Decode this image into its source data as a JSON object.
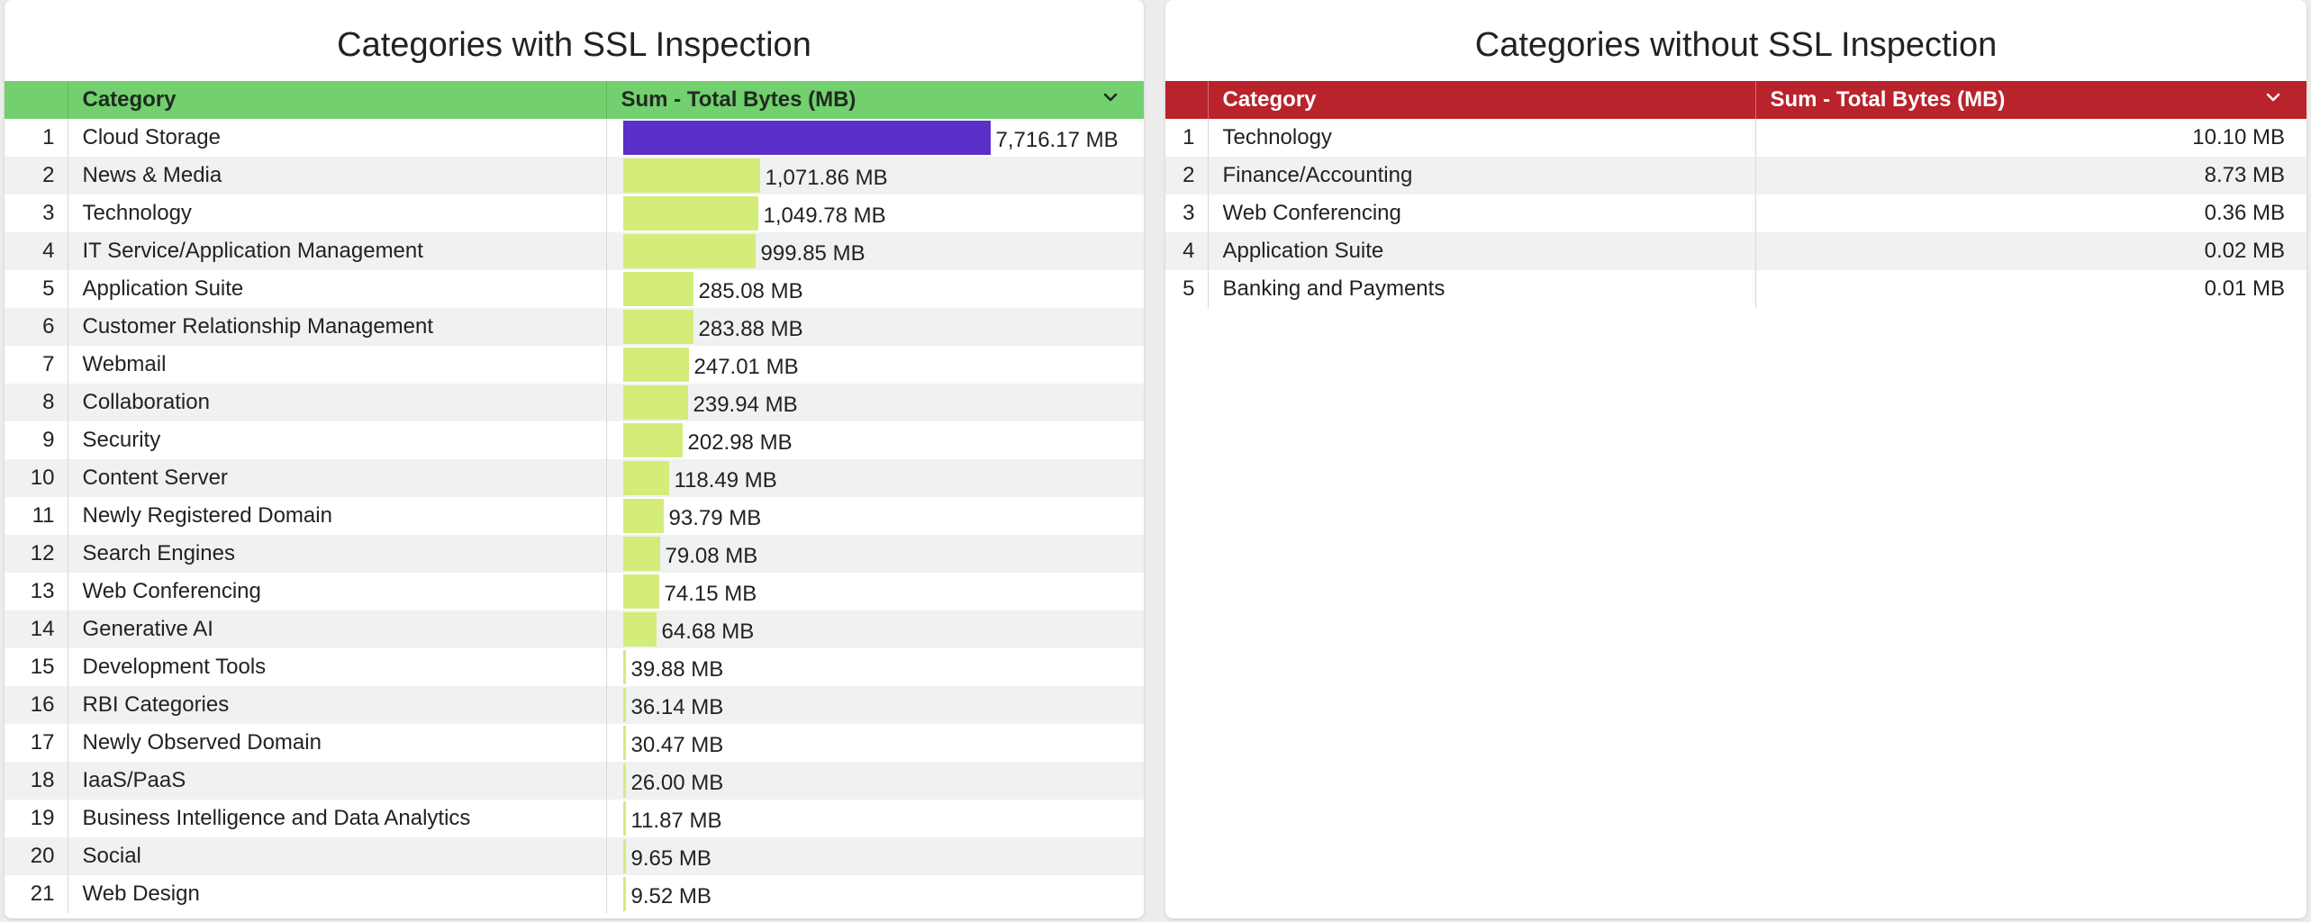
{
  "colors": {
    "left_header_bg": "#72d06e",
    "right_header_bg": "#b9232b",
    "bar_highlight": "#5b2fc9",
    "bar_normal": "#d4ec7a"
  },
  "left_panel": {
    "title": "Categories with SSL Inspection",
    "col_category": "Category",
    "col_value": "Sum - Total Bytes (MB)",
    "sort_icon": "chevron-down-icon",
    "bar_max": 7716.17,
    "rows": [
      {
        "index": "1",
        "category": "Cloud Storage",
        "value": 7716.17,
        "label": "7,716.17 MB",
        "highlight": true
      },
      {
        "index": "2",
        "category": "News & Media",
        "value": 1071.86,
        "label": "1,071.86 MB"
      },
      {
        "index": "3",
        "category": "Technology",
        "value": 1049.78,
        "label": "1,049.78 MB"
      },
      {
        "index": "4",
        "category": "IT Service/Application Management",
        "value": 999.85,
        "label": "999.85 MB"
      },
      {
        "index": "5",
        "category": "Application Suite",
        "value": 285.08,
        "label": "285.08 MB"
      },
      {
        "index": "6",
        "category": "Customer Relationship Management",
        "value": 283.88,
        "label": "283.88 MB"
      },
      {
        "index": "7",
        "category": "Webmail",
        "value": 247.01,
        "label": "247.01 MB"
      },
      {
        "index": "8",
        "category": "Collaboration",
        "value": 239.94,
        "label": "239.94 MB"
      },
      {
        "index": "9",
        "category": "Security",
        "value": 202.98,
        "label": "202.98 MB"
      },
      {
        "index": "10",
        "category": "Content Server",
        "value": 118.49,
        "label": "118.49 MB"
      },
      {
        "index": "11",
        "category": "Newly Registered Domain",
        "value": 93.79,
        "label": "93.79 MB"
      },
      {
        "index": "12",
        "category": "Search Engines",
        "value": 79.08,
        "label": "79.08 MB"
      },
      {
        "index": "13",
        "category": "Web Conferencing",
        "value": 74.15,
        "label": "74.15 MB"
      },
      {
        "index": "14",
        "category": "Generative AI",
        "value": 64.68,
        "label": "64.68 MB"
      },
      {
        "index": "15",
        "category": "Development Tools",
        "value": 39.88,
        "label": "39.88 MB"
      },
      {
        "index": "16",
        "category": "RBI Categories",
        "value": 36.14,
        "label": "36.14 MB"
      },
      {
        "index": "17",
        "category": "Newly Observed Domain",
        "value": 30.47,
        "label": "30.47 MB"
      },
      {
        "index": "18",
        "category": "IaaS/PaaS",
        "value": 26.0,
        "label": "26.00 MB"
      },
      {
        "index": "19",
        "category": "Business Intelligence and Data Analytics",
        "value": 11.87,
        "label": "11.87 MB"
      },
      {
        "index": "20",
        "category": "Social",
        "value": 9.65,
        "label": "9.65 MB"
      },
      {
        "index": "21",
        "category": "Web Design",
        "value": 9.52,
        "label": "9.52 MB"
      }
    ]
  },
  "right_panel": {
    "title": "Categories without SSL Inspection",
    "col_category": "Category",
    "col_value": "Sum - Total Bytes (MB)",
    "sort_icon": "chevron-down-icon",
    "rows": [
      {
        "index": "1",
        "category": "Technology",
        "label": "10.10 MB"
      },
      {
        "index": "2",
        "category": "Finance/Accounting",
        "label": "8.73 MB"
      },
      {
        "index": "3",
        "category": "Web Conferencing",
        "label": "0.36 MB"
      },
      {
        "index": "4",
        "category": "Application Suite",
        "label": "0.02 MB"
      },
      {
        "index": "5",
        "category": "Banking and Payments",
        "label": "0.01 MB"
      }
    ]
  }
}
